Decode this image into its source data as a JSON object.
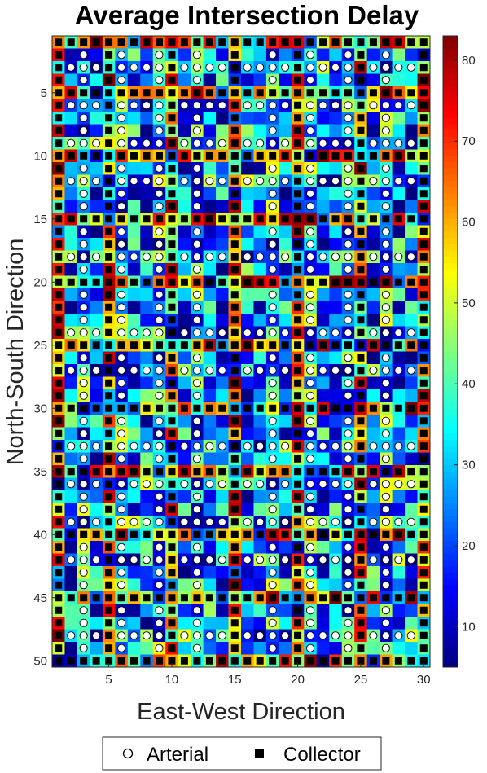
{
  "chart_data": {
    "type": "heatmap",
    "title": "Average Intersection Delay",
    "xlabel": "East-West Direction",
    "ylabel": "North-South Direction",
    "xlim": [
      1,
      30
    ],
    "ylim": [
      1,
      50
    ],
    "y_direction": "top-to-bottom",
    "x_ticks": [
      5,
      10,
      15,
      20,
      25,
      30
    ],
    "y_ticks": [
      5,
      10,
      15,
      20,
      25,
      30,
      35,
      40,
      45,
      50
    ],
    "colormap": "jet",
    "colorbar": {
      "range": [
        5,
        83
      ],
      "ticks": [
        10,
        20,
        30,
        40,
        50,
        60,
        70,
        80
      ]
    },
    "grid": false,
    "arterial_rows": [
      3,
      6,
      9,
      12,
      18,
      24,
      27,
      33,
      36,
      39,
      42,
      48
    ],
    "arterial_cols": [
      3,
      6,
      9,
      12,
      18,
      21,
      24,
      27
    ],
    "collector_rows": [
      1,
      5,
      10,
      15,
      20,
      25,
      30,
      35,
      40,
      45,
      50
    ],
    "collector_cols": [
      1,
      5,
      10,
      15,
      20,
      25,
      30
    ],
    "values_note": "",
    "legend": {
      "placement": "bottom-center",
      "entries": [
        {
          "label": "Arterial",
          "marker": "open-circle"
        },
        {
          "label": "Collector",
          "marker": "filled-square"
        }
      ]
    }
  }
}
